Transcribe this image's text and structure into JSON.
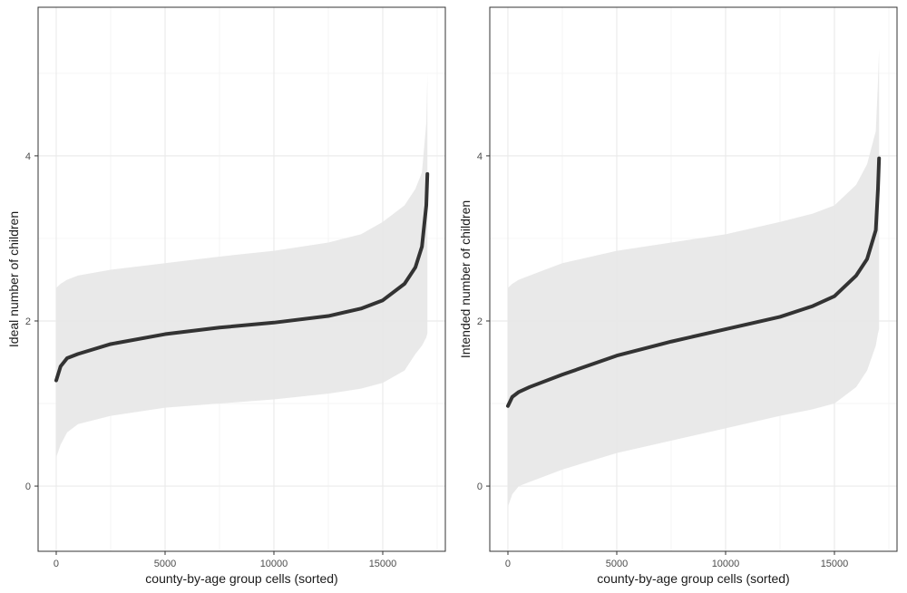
{
  "chart_data": [
    {
      "type": "line",
      "title": "",
      "xlabel": "county-by-age group cells (sorted)",
      "ylabel": "Ideal number of children",
      "xlim": [
        -833,
        17875
      ],
      "ylim": [
        -0.79,
        5.8
      ],
      "xticks": [
        0,
        5000,
        10000,
        15000
      ],
      "yticks": [
        0,
        2,
        4
      ],
      "grid": true,
      "series": [
        {
          "x": [
            0,
            200,
            500,
            1000,
            2500,
            5000,
            7500,
            10000,
            12500,
            14000,
            15000,
            16000,
            16500,
            16800,
            17000,
            17050
          ],
          "y": [
            1.28,
            1.45,
            1.55,
            1.6,
            1.72,
            1.84,
            1.92,
            1.98,
            2.06,
            2.15,
            2.25,
            2.45,
            2.65,
            2.9,
            3.4,
            3.78
          ],
          "lower": [
            0.35,
            0.5,
            0.65,
            0.75,
            0.85,
            0.95,
            1.0,
            1.05,
            1.12,
            1.18,
            1.25,
            1.4,
            1.6,
            1.7,
            1.8,
            1.85
          ],
          "upper": [
            2.4,
            2.45,
            2.5,
            2.55,
            2.62,
            2.7,
            2.78,
            2.85,
            2.95,
            3.05,
            3.2,
            3.4,
            3.6,
            3.8,
            4.4,
            5.0
          ],
          "color": "#333333",
          "band_color": "#e8e8e8"
        }
      ]
    },
    {
      "type": "line",
      "title": "",
      "xlabel": "county-by-age group cells (sorted)",
      "ylabel": "Intended number of children",
      "xlim": [
        -833,
        17875
      ],
      "ylim": [
        -0.79,
        5.8
      ],
      "xticks": [
        0,
        5000,
        10000,
        15000
      ],
      "yticks": [
        0,
        2,
        4
      ],
      "grid": true,
      "series": [
        {
          "x": [
            0,
            200,
            500,
            1000,
            2500,
            5000,
            7500,
            10000,
            12500,
            14000,
            15000,
            16000,
            16500,
            16900,
            17000,
            17050
          ],
          "y": [
            0.97,
            1.08,
            1.14,
            1.2,
            1.35,
            1.58,
            1.75,
            1.9,
            2.05,
            2.18,
            2.3,
            2.55,
            2.75,
            3.1,
            3.6,
            3.97
          ],
          "lower": [
            -0.25,
            -0.1,
            0.0,
            0.05,
            0.2,
            0.4,
            0.55,
            0.7,
            0.85,
            0.93,
            1.0,
            1.2,
            1.4,
            1.7,
            1.85,
            1.9
          ],
          "upper": [
            2.4,
            2.45,
            2.5,
            2.55,
            2.7,
            2.85,
            2.95,
            3.05,
            3.2,
            3.3,
            3.4,
            3.65,
            3.9,
            4.3,
            4.9,
            5.3
          ],
          "color": "#333333",
          "band_color": "#e8e8e8"
        }
      ]
    }
  ]
}
